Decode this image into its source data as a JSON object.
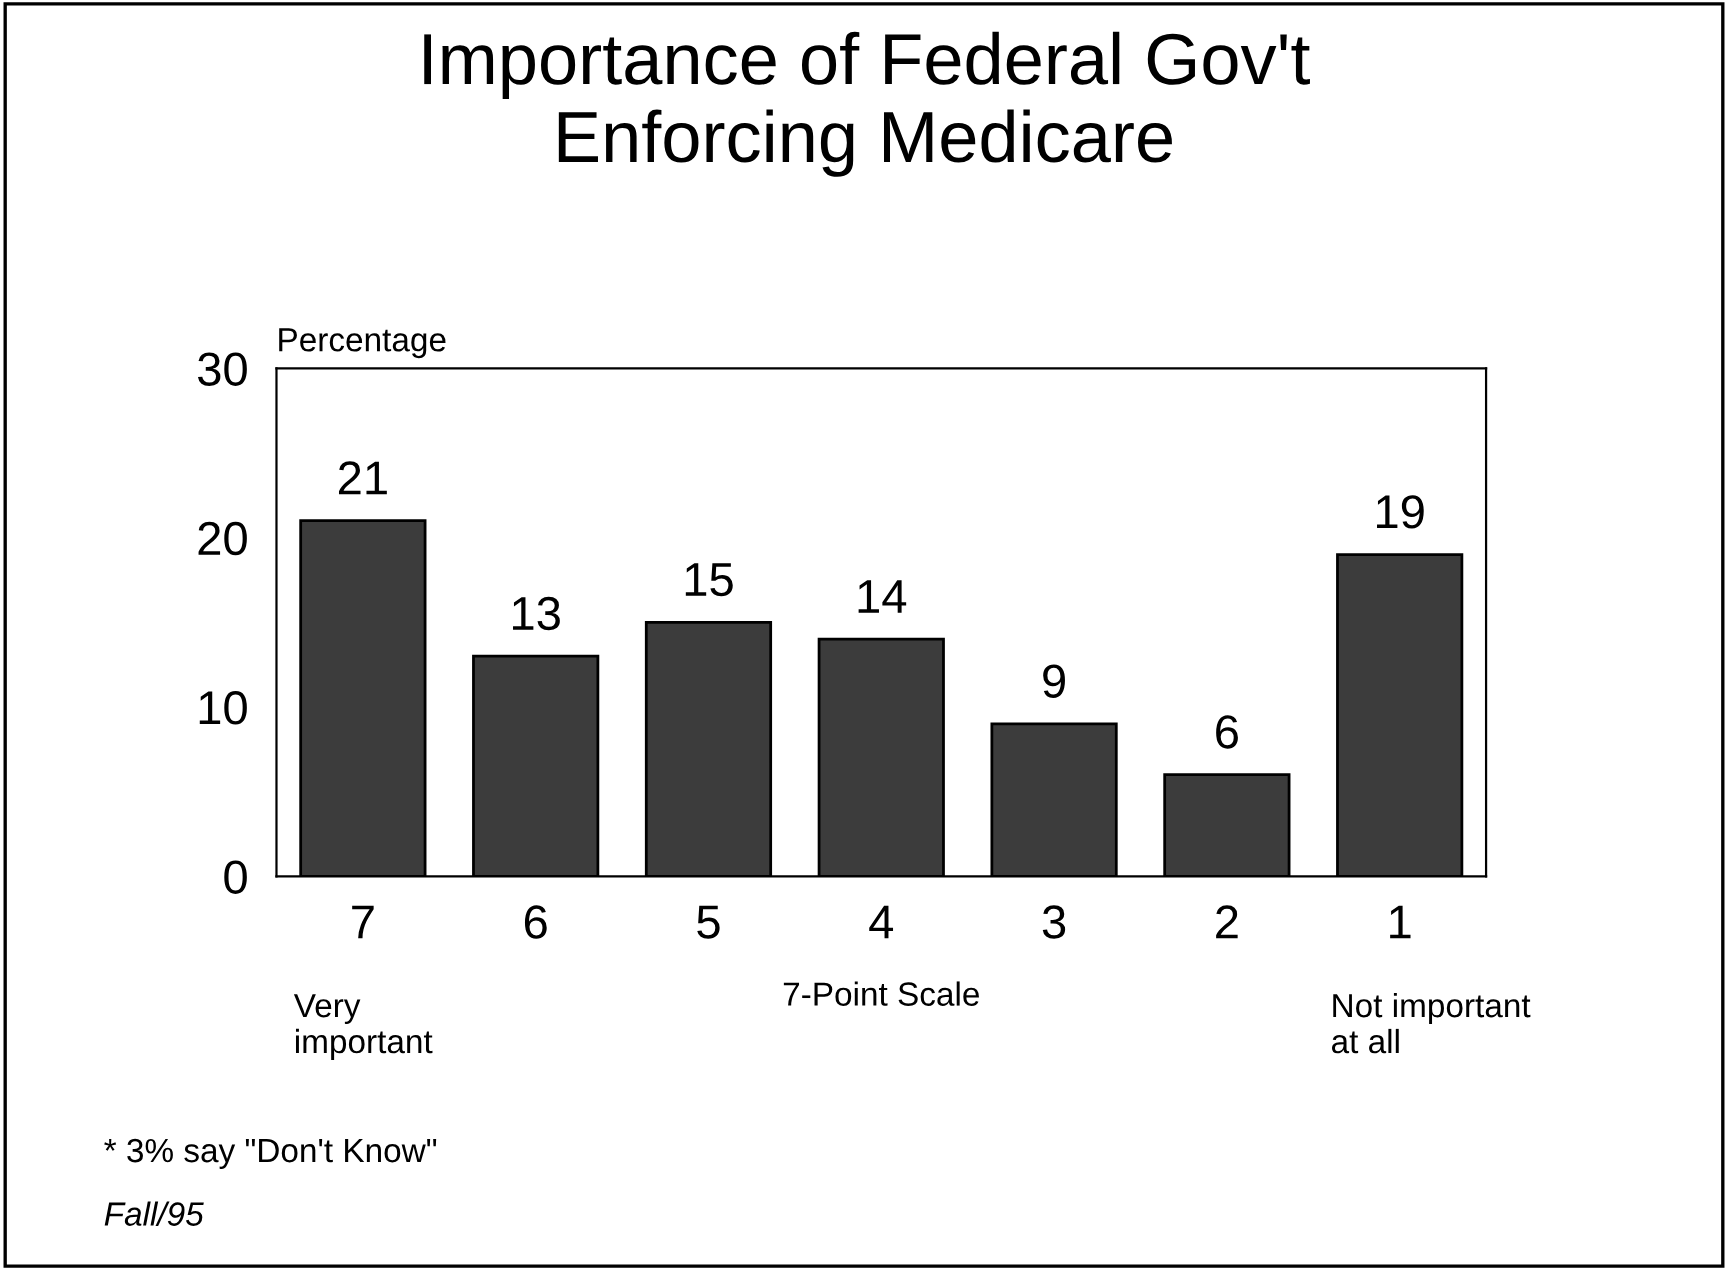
{
  "chart_data": {
    "type": "bar",
    "title": "Importance of Federal Gov't\nEnforcing Medicare",
    "ylabel": "Percentage",
    "xlabel": "7-Point Scale",
    "categories": [
      "7",
      "6",
      "5",
      "4",
      "3",
      "2",
      "1"
    ],
    "values": [
      21,
      13,
      15,
      14,
      9,
      6,
      19
    ],
    "color": "#3c3c3c",
    "data_labels": true,
    "ylim": [
      0,
      30
    ],
    "yticks": [
      0,
      10,
      20,
      30
    ],
    "grid": false,
    "legend": false,
    "annotations": [
      "Very\nimportant",
      "Not important\nat all",
      "* 3% say \"Don't Know\"",
      "Fall/95"
    ]
  }
}
